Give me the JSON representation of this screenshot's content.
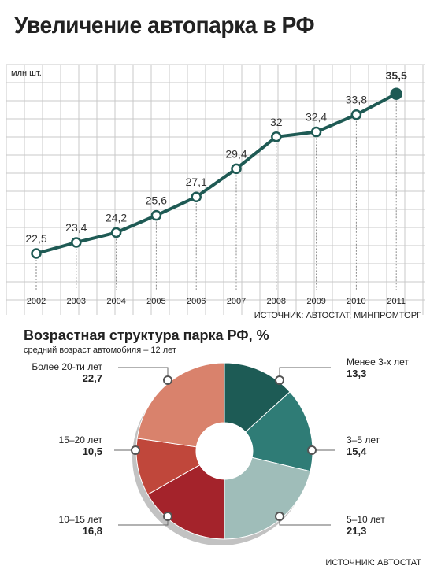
{
  "title": "Увеличение автопарка в РФ",
  "line_chart": {
    "unit_label": "млн шт.",
    "source": "ИСТОЧНИК: АВТОСТАТ, МИНПРОМТОРГ"
  },
  "donut": {
    "title": "Возрастная структура парка РФ, %",
    "subtitle": "средний возраст автомобиля – 12 лет",
    "source": "ИСТОЧНИК: АВТОСТАТ"
  },
  "colors": {
    "line": "#1e5a54",
    "grid": "#c9c9c9"
  },
  "chart_data": [
    {
      "type": "line",
      "title": "Увеличение автопарка в РФ",
      "ylabel": "млн шт.",
      "x": [
        "2002",
        "2003",
        "2004",
        "2005",
        "2006",
        "2007",
        "2008",
        "2009",
        "2010",
        "2011"
      ],
      "values": [
        22.5,
        23.4,
        24.2,
        25.6,
        27.1,
        29.4,
        32,
        32.4,
        33.8,
        35.5
      ],
      "value_labels": [
        "22,5",
        "23,4",
        "24,2",
        "25,6",
        "27,1",
        "29,4",
        "32",
        "32,4",
        "33,8",
        "35,5"
      ],
      "ylim": [
        21,
        36.5
      ],
      "grid": true
    },
    {
      "type": "pie",
      "title": "Возрастная структура парка РФ, %",
      "subtitle": "средний возраст автомобиля – 12 лет",
      "slices": [
        {
          "label": "Менее 3-х лет",
          "value": 13.3,
          "value_label": "13,3",
          "color": "#1d5b55"
        },
        {
          "label": "3–5 лет",
          "value": 15.4,
          "value_label": "15,4",
          "color": "#2f7c76"
        },
        {
          "label": "5–10 лет",
          "value": 21.3,
          "value_label": "21,3",
          "color": "#9fbdb9"
        },
        {
          "label": "10–15 лет",
          "value": 16.8,
          "value_label": "16,8",
          "color": "#a4232b"
        },
        {
          "label": "15–20 лет",
          "value": 10.5,
          "value_label": "10,5",
          "color": "#c0473b"
        },
        {
          "label": "Более 20-ти лет",
          "value": 22.7,
          "value_label": "22,7",
          "color": "#d9826c"
        }
      ]
    }
  ]
}
